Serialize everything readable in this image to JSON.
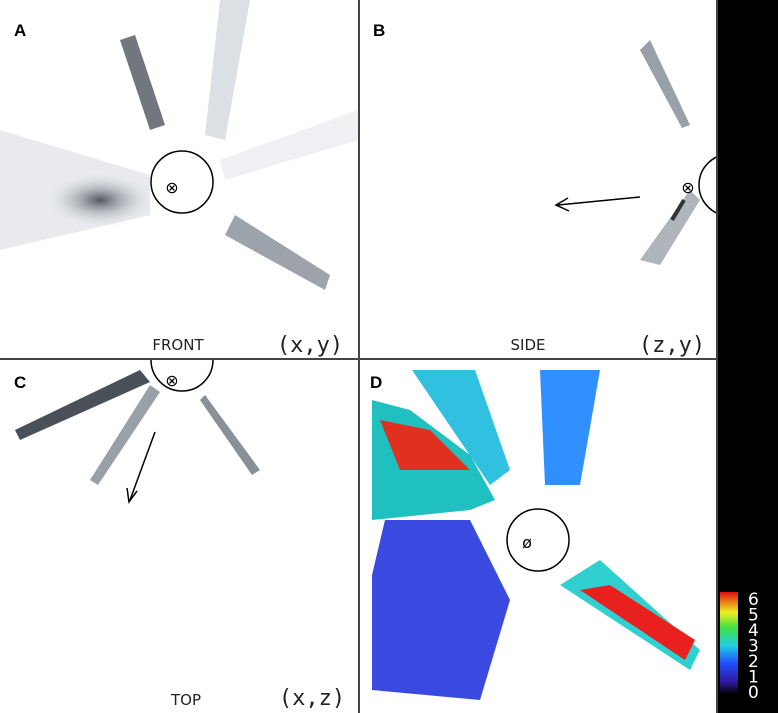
{
  "panels": [
    {
      "label": "A",
      "view": "FRONT",
      "coords": "(x,y)"
    },
    {
      "label": "B",
      "view": "SIDE",
      "coords": "(z,y)"
    },
    {
      "label": "C",
      "view": "TOP",
      "coords": "(x,z)"
    },
    {
      "label": "D"
    }
  ],
  "colorbar": {
    "ticks": [
      "6",
      "5",
      "4",
      "3",
      "2",
      "1",
      "0"
    ]
  }
}
